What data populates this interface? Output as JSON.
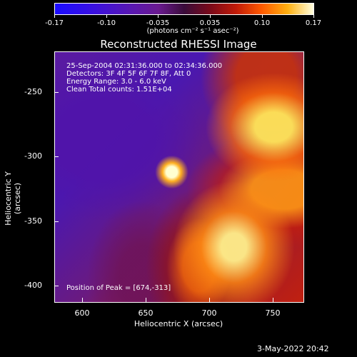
{
  "colorbar": {
    "ticks": [
      "-0.17",
      "-0.10",
      "-0.035",
      "0.035",
      "0.10",
      "0.17"
    ],
    "unit": "(photons cm⁻² s⁻¹ asec⁻²)"
  },
  "title": "Reconstructed RHESSI Image",
  "overlay": {
    "time": "25-Sep-2004 02:31:36.000 to 02:34:36.000",
    "detectors": "Detectors: 3F 4F 5F 6F 7F 8F, Att 0",
    "energy": "Energy Range: 3.0 - 6.0 keV",
    "clean": "Clean     Total counts: 1.51E+04",
    "peak": "Position of Peak = [674,-313]"
  },
  "axes": {
    "xlabel": "Heliocentric X (arcsec)",
    "ylabel": "Heliocentric Y (arcsec)",
    "xticks": [
      "600",
      "650",
      "700",
      "750"
    ],
    "yticks": [
      "-250",
      "-300",
      "-350",
      "-400"
    ]
  },
  "datestamp": "3-May-2022 20:42"
}
